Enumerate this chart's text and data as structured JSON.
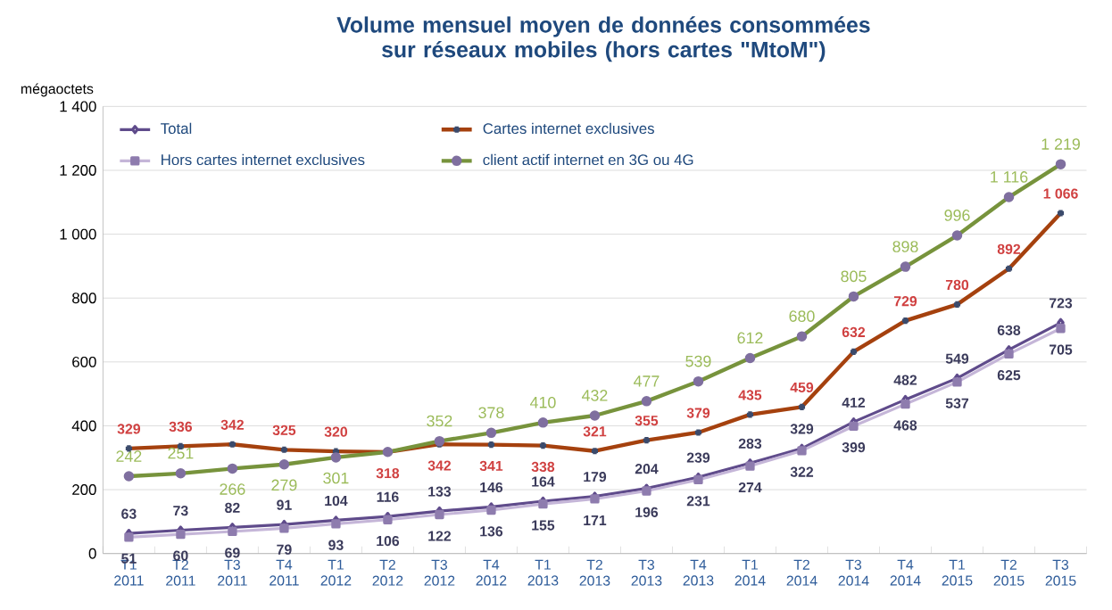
{
  "chart_data": {
    "type": "line",
    "title": "Volume mensuel moyen de données consommées sur réseaux mobiles (hors cartes \"MtoM\")",
    "ylabel": "mégaoctets",
    "categories": [
      "T1 2011",
      "T2 2011",
      "T3 2011",
      "T4 2011",
      "T1 2012",
      "T2 2012",
      "T3 2012",
      "T4 2012",
      "T1 2013",
      "T2 2013",
      "T3 2013",
      "T4 2013",
      "T1 2014",
      "T2 2014",
      "T3 2014",
      "T4 2014",
      "T1 2015",
      "T2 2015",
      "T3 2015"
    ],
    "ylim": [
      0,
      1400
    ],
    "yticks": [
      0,
      200,
      400,
      600,
      800,
      {
        "value": 1000,
        "label": "1 000"
      },
      {
        "value": 1200,
        "label": "1 200"
      },
      {
        "value": 1400,
        "label": "1 400"
      }
    ],
    "grid": "y",
    "legend": "top left",
    "series": [
      {
        "name": "Total",
        "color": "#5f4b8b",
        "marker": "diamond",
        "values": [
          63,
          73,
          82,
          91,
          104,
          116,
          133,
          146,
          164,
          179,
          204,
          239,
          283,
          329,
          412,
          482,
          549,
          638,
          723
        ],
        "value_labels": [
          "63",
          "73",
          "82",
          "91",
          "104",
          "116",
          "133",
          "146",
          "164",
          "179",
          "204",
          "239",
          "283",
          "329",
          "412",
          "482",
          "549",
          "638",
          "723"
        ]
      },
      {
        "name": "Cartes internet exclusives",
        "color": "#a5410e",
        "marker": "cross",
        "values": [
          329,
          336,
          342,
          325,
          320,
          318,
          342,
          341,
          338,
          321,
          355,
          379,
          435,
          459,
          632,
          729,
          780,
          892,
          1066
        ],
        "value_labels": [
          "329",
          "336",
          "342",
          "325",
          "320",
          "318",
          "342",
          "341",
          "338",
          "321",
          "355",
          "379",
          "435",
          "459",
          "632",
          "729",
          "780",
          "892",
          "1 066"
        ]
      },
      {
        "name": "Hors cartes internet exclusives",
        "color": "#c5b6d8",
        "marker": "square",
        "values": [
          51,
          60,
          69,
          79,
          93,
          106,
          122,
          136,
          155,
          171,
          196,
          231,
          274,
          322,
          399,
          468,
          537,
          625,
          705
        ],
        "value_labels": [
          "51",
          "60",
          "69",
          "79",
          "93",
          "106",
          "122",
          "136",
          "155",
          "171",
          "196",
          "231",
          "274",
          "322",
          "399",
          "468",
          "537",
          "625",
          "705"
        ]
      },
      {
        "name": "client actif internet en 3G ou 4G",
        "color": "#77933c",
        "marker": "circle",
        "values": [
          242,
          251,
          266,
          279,
          301,
          318,
          352,
          378,
          410,
          432,
          477,
          539,
          612,
          680,
          805,
          898,
          996,
          1116,
          1219
        ],
        "value_labels": [
          "242",
          "251",
          "266",
          "279",
          "301",
          null,
          "352",
          "378",
          "410",
          "432",
          "477",
          "539",
          "612",
          "680",
          "805",
          "898",
          "996",
          "1 116",
          "1 219"
        ]
      }
    ]
  }
}
